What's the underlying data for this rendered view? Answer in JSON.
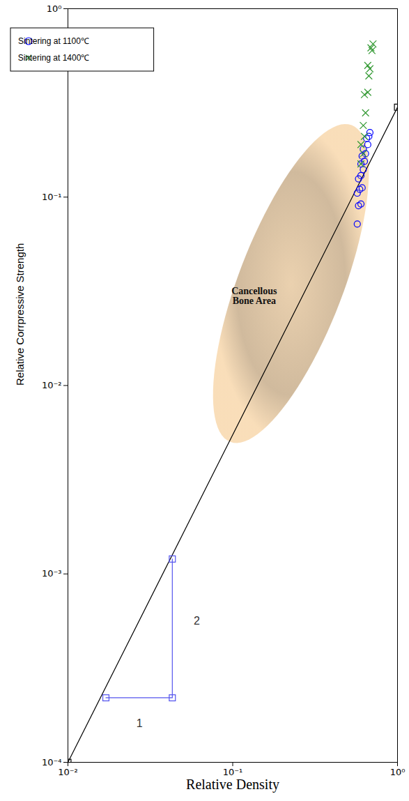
{
  "chart_data": {
    "type": "scatter",
    "xlabel": "Relative Density",
    "ylabel": "Relative Corrpressive Strength",
    "log": true,
    "grid": false,
    "legend": "top-left",
    "xlim": [
      0.01,
      1
    ],
    "ylim": [
      0.0001,
      1
    ],
    "xticks": [
      {
        "value": 0.01,
        "label": "10⁻²"
      },
      {
        "value": 0.1,
        "label": "10⁻¹"
      },
      {
        "value": 1,
        "label": "10⁰"
      }
    ],
    "yticks": [
      {
        "value": 0.0001,
        "label": "10⁻⁴"
      },
      {
        "value": 0.001,
        "label": "10⁻³"
      },
      {
        "value": 0.01,
        "label": "10⁻²"
      },
      {
        "value": 0.1,
        "label": "10⁻¹"
      },
      {
        "value": 1,
        "label": "10⁰"
      }
    ],
    "series": [
      {
        "name": "Sintering at 1100℃",
        "type": "scatter",
        "marker": "circle",
        "color": "#0000ff",
        "x": [
          0.57,
          0.58,
          0.6,
          0.57,
          0.59,
          0.61,
          0.58,
          0.6,
          0.62,
          0.6,
          0.63,
          0.61,
          0.64,
          0.62,
          0.66,
          0.65,
          0.67,
          0.68
        ],
        "y": [
          0.072,
          0.09,
          0.092,
          0.105,
          0.11,
          0.112,
          0.125,
          0.13,
          0.14,
          0.15,
          0.155,
          0.165,
          0.17,
          0.18,
          0.19,
          0.205,
          0.21,
          0.22
        ]
      },
      {
        "name": "Sintering at 1400℃",
        "type": "scatter",
        "marker": "x",
        "color": "#339933",
        "x": [
          0.6,
          0.62,
          0.6,
          0.63,
          0.62,
          0.64,
          0.63,
          0.66,
          0.67,
          0.68,
          0.66,
          0.7,
          0.71,
          0.69
        ],
        "y": [
          0.15,
          0.17,
          0.19,
          0.21,
          0.24,
          0.28,
          0.35,
          0.36,
          0.44,
          0.48,
          0.5,
          0.6,
          0.65,
          0.62
        ]
      }
    ],
    "lines": [
      {
        "type": "line",
        "marker": "square",
        "color": "#000000",
        "x": [
          0.01,
          1
        ],
        "y": [
          0.0001,
          0.3
        ]
      },
      {
        "type": "line",
        "marker": "square",
        "color": "#5555ee",
        "x": [
          0.017,
          0.043,
          0.043
        ],
        "y": [
          0.00022,
          0.00022,
          0.0012
        ]
      }
    ],
    "region": {
      "color": "#c8ae8c",
      "major_ends": {
        "x": [
          0.097,
          0.53
        ],
        "y": [
          0.005,
          0.24
        ]
      },
      "minor_ends": {
        "x": [
          0.114,
          0.446
        ],
        "y": [
          0.0435,
          0.0275
        ]
      }
    },
    "annotations": [
      {
        "text": "Cancellous Bone Area",
        "x": 0.135,
        "y": 0.03
      },
      {
        "text": "1",
        "x": 0.0272,
        "y": 0.00016
      },
      {
        "text": "2",
        "x": 0.0605,
        "y": 0.00056
      }
    ]
  }
}
